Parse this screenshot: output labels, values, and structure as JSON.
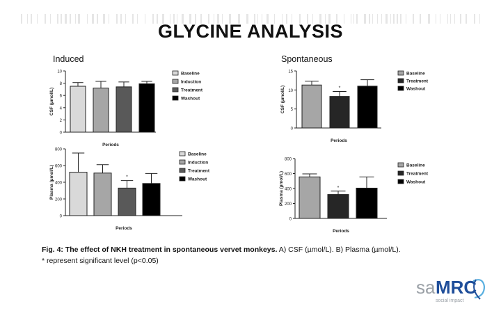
{
  "slide": {
    "title": "GLYCINE ANALYSIS",
    "induced_label": "Induced",
    "spontaneous_label": "Spontaneous",
    "caption_bold": "Fig. 4: The effect of NKH treatment in spontaneous vervet monkeys.",
    "caption_rest": " A) CSF (µmol/L). B) Plasma (µmol/L).",
    "caption_line2": "* represent significant level (p<0.05)",
    "logo": {
      "text_sa": "sa",
      "text_mrc": "MRC",
      "tagline": "social impact"
    },
    "colors": {
      "baseline": "#d9d9d9",
      "induction": "#a6a6a6",
      "treatment": "#595959",
      "washout": "#000000"
    }
  },
  "chart_data": [
    {
      "type": "bar",
      "panel": "Induced CSF",
      "categories": [
        "Baseline",
        "Induction",
        "Treatment",
        "Washout"
      ],
      "values": [
        7.5,
        7.2,
        7.4,
        7.9
      ],
      "errors": [
        0.6,
        1.1,
        0.8,
        0.4
      ],
      "significant": [
        false,
        false,
        false,
        false
      ],
      "xlabel": "Periods",
      "ylabel": "CSF (µmol/L)",
      "ylim": [
        0,
        10
      ],
      "yticks": [
        0,
        2,
        4,
        6,
        8,
        10
      ],
      "legend": [
        "Baseline",
        "Induction",
        "Treatment",
        "Washout"
      ],
      "legend_colors": [
        "#d9d9d9",
        "#a6a6a6",
        "#595959",
        "#000000"
      ]
    },
    {
      "type": "bar",
      "panel": "Spontaneous CSF",
      "categories": [
        "Baseline",
        "Treatment",
        "Washout"
      ],
      "values": [
        11.3,
        8.3,
        11.0
      ],
      "errors": [
        1.0,
        1.3,
        1.7
      ],
      "significant": [
        false,
        true,
        false
      ],
      "xlabel": "Periods",
      "ylabel": "CSF (µmol/L)",
      "ylim": [
        0,
        15
      ],
      "yticks": [
        0,
        5,
        10,
        15
      ],
      "legend": [
        "Baseline",
        "Treatment",
        "Washout"
      ],
      "legend_colors": [
        "#a6a6a6",
        "#262626",
        "#000000"
      ]
    },
    {
      "type": "bar",
      "panel": "Induced Plasma",
      "categories": [
        "Baseline",
        "Induction",
        "Treatment",
        "Washout"
      ],
      "values": [
        520,
        510,
        330,
        385
      ],
      "errors": [
        230,
        100,
        90,
        120
      ],
      "significant": [
        false,
        false,
        true,
        false
      ],
      "xlabel": "Periods",
      "ylabel": "Plasma (µmol/L)",
      "ylim": [
        0,
        800
      ],
      "yticks": [
        0,
        200,
        400,
        600,
        800
      ],
      "legend": [
        "Baseline",
        "Induction",
        "Treatment",
        "Washout"
      ],
      "legend_colors": [
        "#d9d9d9",
        "#a6a6a6",
        "#595959",
        "#000000"
      ]
    },
    {
      "type": "bar",
      "panel": "Spontaneous Plasma",
      "categories": [
        "Baseline",
        "Treatment",
        "Washout"
      ],
      "values": [
        555,
        320,
        405
      ],
      "errors": [
        40,
        45,
        150
      ],
      "significant": [
        false,
        true,
        false
      ],
      "xlabel": "Periods",
      "ylabel": "Plasma (µmol/L)",
      "ylim": [
        0,
        800
      ],
      "yticks": [
        0,
        200,
        400,
        600,
        800
      ],
      "legend": [
        "Baseline",
        "Treatment",
        "Washout"
      ],
      "legend_colors": [
        "#a6a6a6",
        "#262626",
        "#000000"
      ]
    }
  ]
}
